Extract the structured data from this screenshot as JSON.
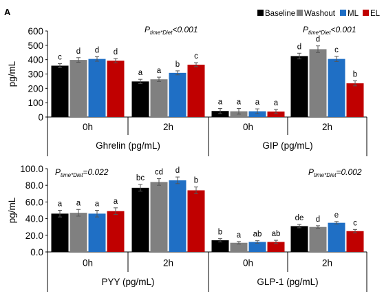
{
  "figure": {
    "panel_letter": "A",
    "legend": [
      {
        "label": "Baseline",
        "color": "#000000"
      },
      {
        "label": "Washout",
        "color": "#808080"
      },
      {
        "label": "ML",
        "color": "#1f6fc5"
      },
      {
        "label": "EL",
        "color": "#c00000"
      }
    ]
  },
  "chart_data": [
    {
      "type": "bar",
      "ylabel": "pg/mL",
      "ylim": [
        0,
        600
      ],
      "yticks": [
        "0",
        "100",
        "200",
        "300",
        "400",
        "500",
        "600"
      ],
      "groups": [
        {
          "hormone": "Ghrelin (pg/mL)",
          "p_prefix": "P",
          "p_sub": "time*Diet",
          "p_rest": "<0.001",
          "times": [
            {
              "label": "0h",
              "values": [
                358,
                398,
                405,
                393
              ],
              "errors": [
                14,
                16,
                16,
                15
              ],
              "letters": [
                "c",
                "d",
                "d",
                "d"
              ]
            },
            {
              "label": "2h",
              "values": [
                248,
                263,
                308,
                365
              ],
              "errors": [
                15,
                15,
                14,
                14
              ],
              "letters": [
                "a",
                "a",
                "b",
                "c"
              ]
            }
          ]
        },
        {
          "hormone": "GIP (pg/mL)",
          "p_prefix": "P",
          "p_sub": "time*Diet",
          "p_rest": "<0.001",
          "times": [
            {
              "label": "0h",
              "values": [
                42,
                40,
                40,
                38
              ],
              "errors": [
                18,
                20,
                17,
                15
              ],
              "letters": [
                "a",
                "a",
                "a",
                "a"
              ]
            },
            {
              "label": "2h",
              "values": [
                425,
                473,
                405,
                235
              ],
              "errors": [
                20,
                23,
                18,
                18
              ],
              "letters": [
                "d",
                "d",
                "c",
                "b"
              ]
            }
          ]
        }
      ]
    },
    {
      "type": "bar",
      "ylabel": "pg/mL",
      "ylim": [
        0,
        100
      ],
      "yticks": [
        "0.0",
        "20.0",
        "40.0",
        "60.0",
        "80.0",
        "100.0"
      ],
      "groups": [
        {
          "hormone": "PYY (pg/mL)",
          "p_prefix": "P",
          "p_sub": "time*Diet",
          "p_rest": "=0.022",
          "times": [
            {
              "label": "0h",
              "values": [
                46,
                47,
                46,
                49
              ],
              "errors": [
                4,
                4,
                4,
                4
              ],
              "letters": [
                "a",
                "a",
                "a",
                "a"
              ]
            },
            {
              "label": "2h",
              "values": [
                77,
                84,
                86,
                74
              ],
              "errors": [
                4,
                4,
                4,
                4
              ],
              "letters": [
                "bc",
                "cd",
                "d",
                "b"
              ]
            }
          ]
        },
        {
          "hormone": "GLP-1 (pg/mL)",
          "p_prefix": "P",
          "p_sub": "time*Diet",
          "p_rest": "=0.002",
          "times": [
            {
              "label": "0h",
              "values": [
                14,
                11,
                12,
                12
              ],
              "errors": [
                2,
                1.5,
                1.5,
                2
              ],
              "letters": [
                "b",
                "a",
                "ab",
                "ab"
              ]
            },
            {
              "label": "2h",
              "values": [
                31,
                30,
                35,
                25
              ],
              "errors": [
                2,
                1.5,
                1.5,
                2
              ],
              "letters": [
                "de",
                "d",
                "e",
                "c"
              ]
            }
          ]
        }
      ]
    }
  ]
}
